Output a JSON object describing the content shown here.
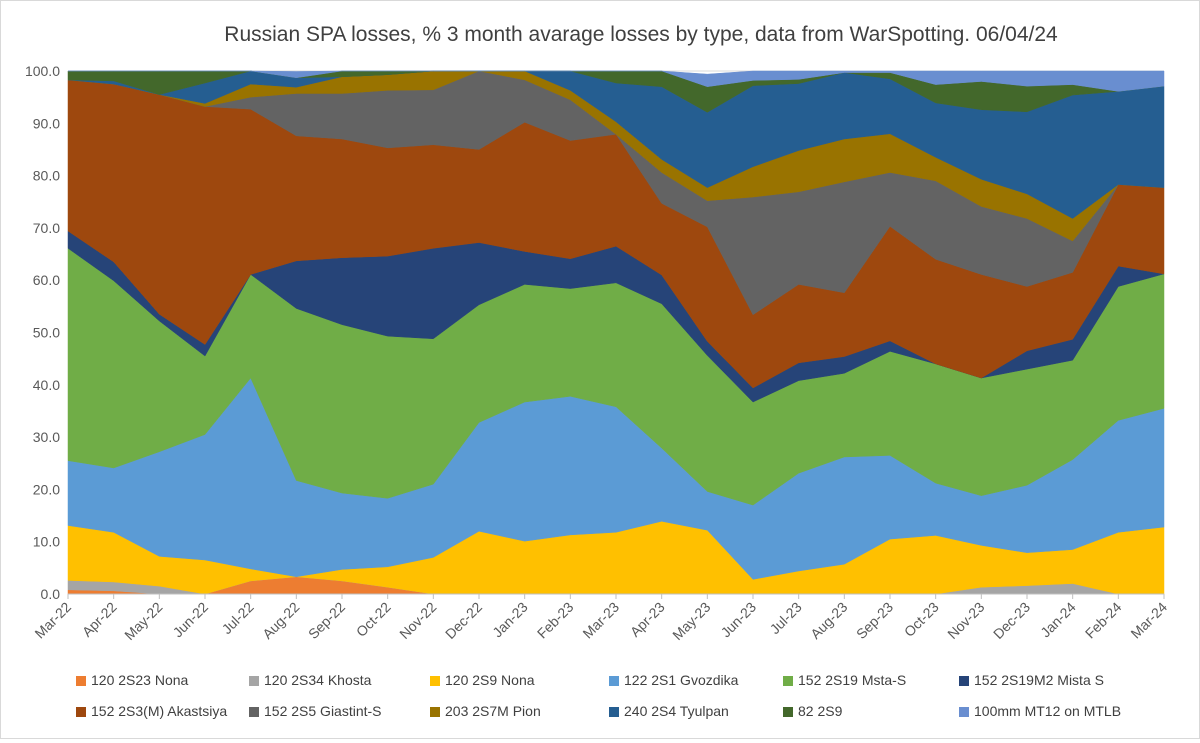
{
  "chart_data": {
    "type": "area",
    "stacked": true,
    "title": "Russian SPA losses, % 3 month avarage losses by type, data from WarSpotting. 06/04/24",
    "xlabel": "",
    "ylabel": "",
    "ylim": [
      0,
      100
    ],
    "yticks": [
      "0.0",
      "10.0",
      "20.0",
      "30.0",
      "40.0",
      "50.0",
      "60.0",
      "70.0",
      "80.0",
      "90.0",
      "100.0"
    ],
    "grid": true,
    "legend_position": "bottom",
    "x": [
      "Mar-22",
      "Apr-22",
      "May-22",
      "Jun-22",
      "Jul-22",
      "Aug-22",
      "Sep-22",
      "Oct-22",
      "Nov-22",
      "Dec-22",
      "Jan-23",
      "Feb-23",
      "Mar-23",
      "Apr-23",
      "May-23",
      "Jun-23",
      "Jul-23",
      "Aug-23",
      "Sep-23",
      "Oct-23",
      "Nov-23",
      "Dec-23",
      "Jan-24",
      "Feb-24",
      "Mar-24"
    ],
    "series": [
      {
        "name": "120 2S23 Nona",
        "color": "#ED7D31",
        "values": [
          0.8,
          0.6,
          0,
          0,
          2.5,
          3.3,
          2.5,
          1.3,
          0,
          0,
          0,
          0,
          0,
          0,
          0,
          0,
          0,
          0,
          0,
          0,
          0,
          0,
          0,
          0,
          0
        ]
      },
      {
        "name": "120 2S34 Khosta",
        "color": "#A5A5A5",
        "values": [
          1.8,
          1.7,
          1.5,
          0,
          0,
          0,
          0,
          0,
          0,
          0,
          0,
          0,
          0,
          0,
          0,
          0,
          0,
          0,
          0,
          0,
          1.3,
          1.6,
          2.0,
          0,
          0
        ]
      },
      {
        "name": "120 2S9 Nona",
        "color": "#FFC000",
        "values": [
          10.5,
          9.5,
          5.7,
          6.5,
          2.3,
          0,
          2.2,
          3.9,
          7.0,
          12.0,
          10.1,
          11.3,
          11.8,
          13.9,
          12.2,
          2.8,
          4.4,
          5.7,
          10.5,
          11.2,
          8.0,
          6.3,
          6.5,
          11.8,
          12.8
        ]
      },
      {
        "name": "122 2S1 Gvozdika",
        "color": "#5B9BD5",
        "values": [
          12.4,
          12.3,
          20.0,
          24.0,
          36.5,
          18.4,
          14.6,
          13.1,
          14.0,
          20.8,
          26.6,
          26.5,
          24.0,
          14.0,
          7.4,
          14.2,
          18.7,
          20.5,
          16.0,
          10.0,
          9.5,
          12.9,
          17.2,
          21.4,
          22.7
        ]
      },
      {
        "name": "152 2S19 Msta-S",
        "color": "#70AD47",
        "values": [
          40.6,
          35.8,
          25.0,
          15.0,
          19.8,
          32.9,
          32.2,
          31.0,
          27.8,
          22.5,
          22.5,
          20.6,
          23.7,
          27.6,
          26.0,
          19.7,
          17.7,
          16.0,
          19.9,
          22.8,
          22.5,
          22.2,
          19.0,
          25.6,
          25.7
        ]
      },
      {
        "name": "152 2S19M2 Mista S",
        "color": "#264478",
        "values": [
          3.3,
          3.6,
          1.3,
          2.2,
          0,
          9.1,
          12.8,
          15.3,
          17.3,
          11.9,
          6.3,
          5.7,
          7.0,
          5.5,
          2.7,
          2.7,
          3.4,
          3.2,
          2.0,
          0,
          0,
          3.5,
          4.0,
          3.9,
          0
        ]
      },
      {
        "name": "152 2S3(M) Akastsiya",
        "color": "#9E480E",
        "values": [
          28.9,
          34.0,
          42.0,
          45.5,
          31.6,
          23.9,
          22.7,
          20.7,
          19.8,
          17.8,
          24.7,
          22.6,
          21.4,
          13.7,
          21.9,
          14.0,
          15.0,
          12.2,
          21.9,
          20.0,
          19.8,
          12.3,
          12.8,
          15.6,
          16.5
        ]
      },
      {
        "name": "152 2S5 Giastint-S",
        "color": "#636363",
        "values": [
          0,
          0,
          0,
          0,
          2.3,
          8.1,
          8.7,
          11.0,
          10.5,
          15.0,
          8.1,
          7.8,
          0,
          5.9,
          5.0,
          22.5,
          17.7,
          21.2,
          10.3,
          15.0,
          13.0,
          13.0,
          6.0,
          0,
          0
        ]
      },
      {
        "name": "203 2S7M Pion",
        "color": "#997300",
        "values": [
          0,
          0,
          0,
          0.6,
          2.5,
          1.2,
          3.2,
          3.0,
          3.6,
          0,
          2.0,
          1.8,
          2.4,
          2.5,
          2.5,
          5.8,
          7.9,
          8.2,
          7.4,
          4.5,
          5.2,
          4.7,
          4.3,
          0,
          0
        ]
      },
      {
        "name": "240 2S4 Tyulpan",
        "color": "#255E91",
        "values": [
          0,
          0.6,
          0,
          3.9,
          2.5,
          1.8,
          0,
          0,
          0,
          0,
          0,
          3.7,
          7.4,
          13.9,
          14.4,
          15.5,
          12.8,
          12.7,
          10.5,
          10.4,
          13.3,
          15.7,
          23.6,
          17.8,
          19.4
        ]
      },
      {
        "name": "82 2S9",
        "color": "#43682B",
        "values": [
          1.7,
          1.9,
          4.5,
          2.3,
          0,
          0,
          1.1,
          0.7,
          0,
          0,
          0,
          0,
          2.3,
          3.0,
          4.9,
          1.0,
          0.8,
          0,
          1.2,
          3.5,
          5.4,
          4.9,
          2.0,
          0,
          0
        ]
      },
      {
        "name": "100mm MT12 on MTLB",
        "color": "#698ED0",
        "values": [
          0,
          0,
          0,
          0,
          0,
          1.2,
          0,
          0,
          0,
          0,
          0,
          0,
          0,
          0,
          2.4,
          1.8,
          1.6,
          0.3,
          0.3,
          2.6,
          2.0,
          3.3,
          2.6,
          3.9,
          2.9
        ]
      }
    ]
  }
}
